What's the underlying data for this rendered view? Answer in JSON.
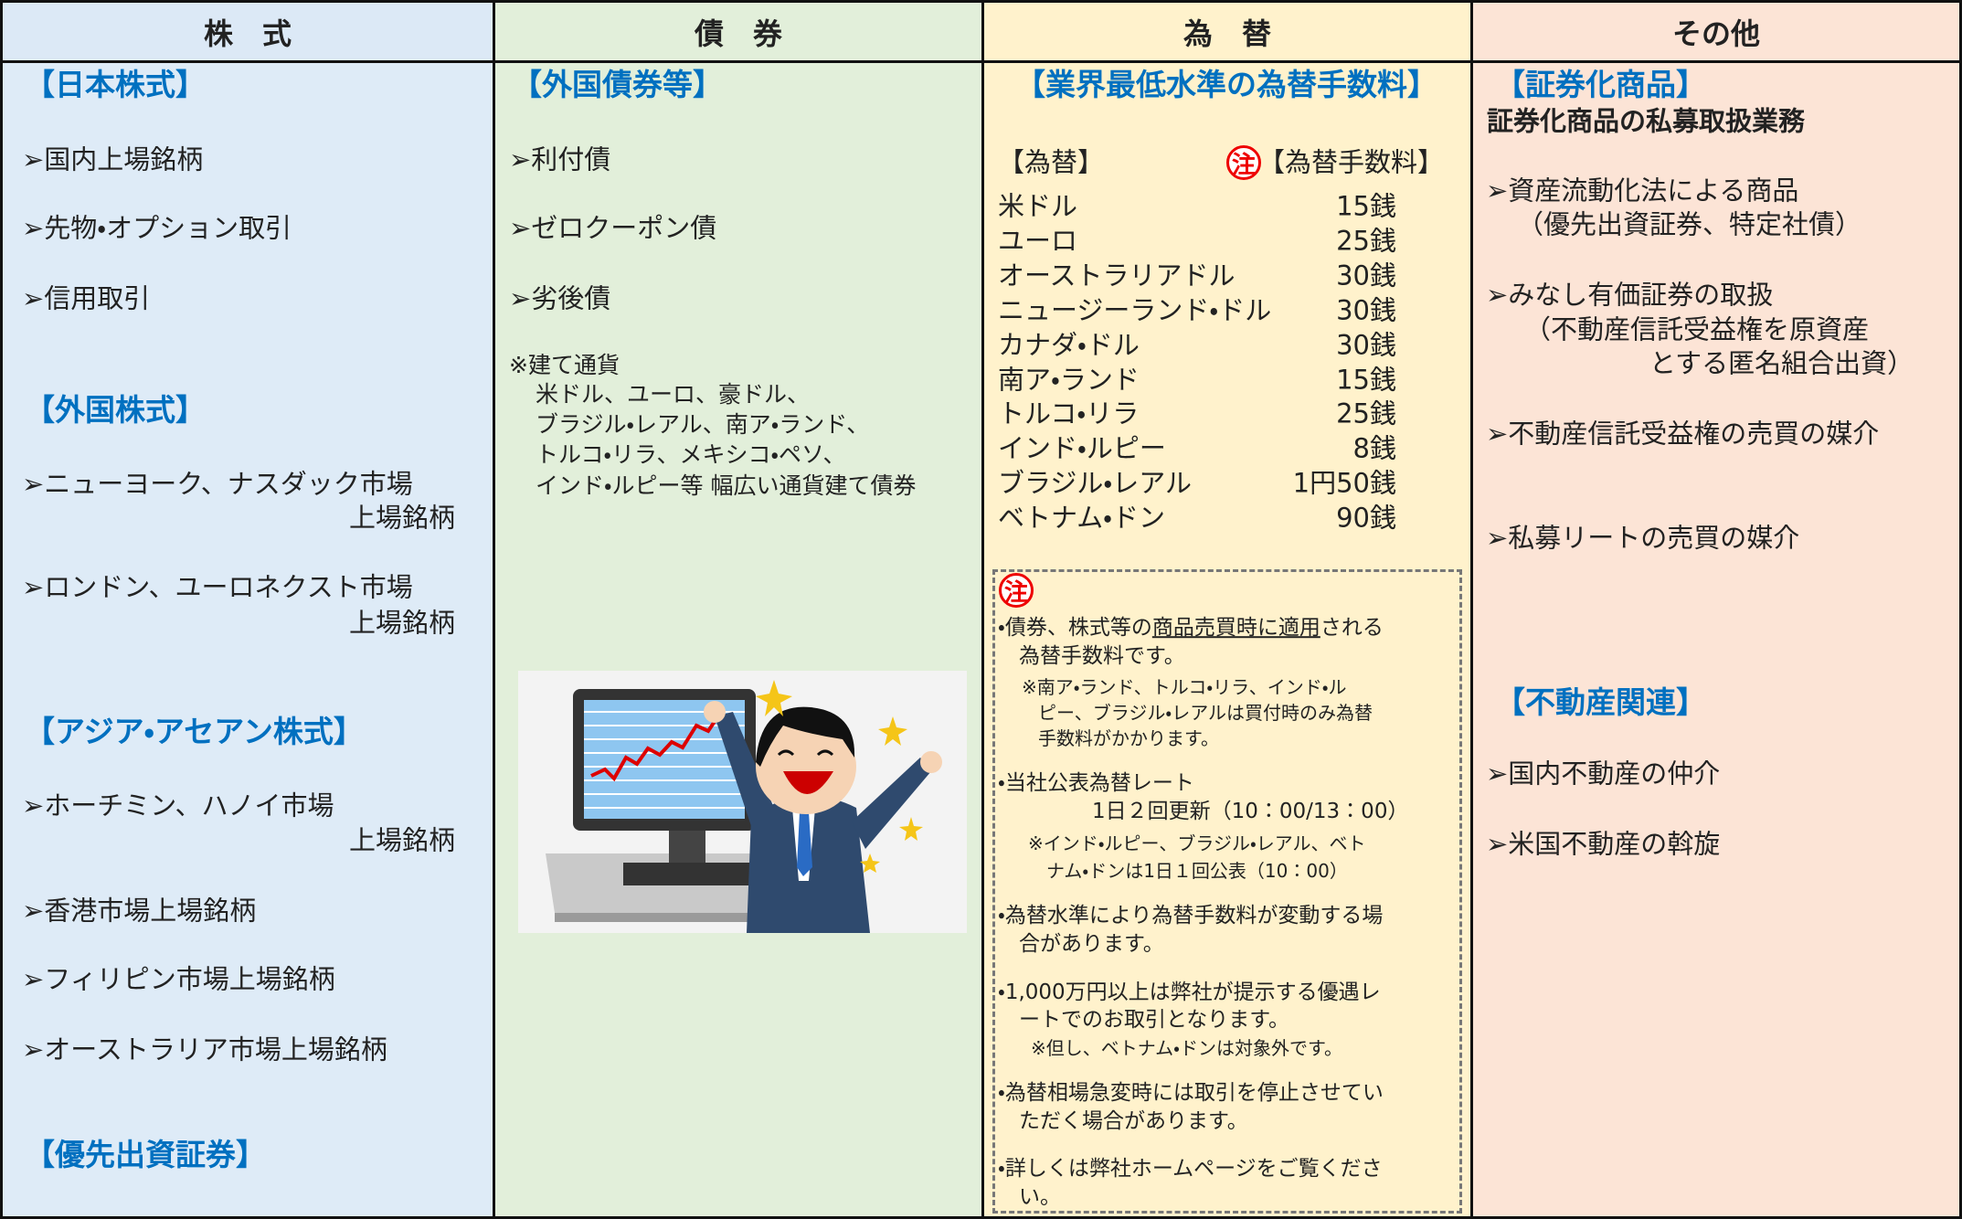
{
  "headers": [
    "株　式",
    "債　券",
    "為　替",
    "その他"
  ],
  "stocks": {
    "japan": {
      "title": "【日本株式】",
      "items": [
        "➢国内上場銘柄",
        "➢先物・オプション取引",
        "➢信用取引"
      ]
    },
    "foreign": {
      "title": "【外国株式】",
      "items": [
        [
          "➢ニューヨーク、ナスダック市場",
          "上場銘柄"
        ],
        [
          "➢ロンドン、ユーロネクスト市場",
          "上場銘柄"
        ]
      ]
    },
    "asia": {
      "title": "【アジア・アセアン株式】",
      "items": [
        [
          "➢ホーチミン、ハノイ市場",
          "上場銘柄"
        ],
        [
          "➢香港市場上場銘柄"
        ],
        [
          "➢フィリピン市場上場銘柄"
        ],
        [
          "➢オーストラリア市場上場銘柄"
        ]
      ]
    },
    "preferred": {
      "title": "【優先出資証券】"
    }
  },
  "bonds": {
    "title": "【外国債券等】",
    "items": [
      "➢利付債",
      "➢ゼロクーポン債",
      "➢劣後債"
    ],
    "note": [
      "※建て通貨",
      "米ドル、ユーロ、豪ドル、",
      "ブラジル・レアル、南ア・ランド、",
      "トルコ・リラ、メキシコ・ペソ、",
      "インド・ルピー等 幅広い通貨建て債券"
    ]
  },
  "fx": {
    "title": "【業界最低水準の為替手数料】",
    "col_currency": "【為替】",
    "note_mark": "注",
    "col_fee": "【為替手数料】",
    "rows": [
      [
        "米ドル",
        "15銭"
      ],
      [
        "ユーロ",
        "25銭"
      ],
      [
        "オーストラリアドル",
        "30銭"
      ],
      [
        "ニュージーランド・ドル",
        "30銭"
      ],
      [
        "カナダ・ドル",
        "30銭"
      ],
      [
        "南ア・ランド",
        "15銭"
      ],
      [
        "トルコ・リラ",
        "25銭"
      ],
      [
        "インド・ルピー",
        "8銭"
      ],
      [
        "ブラジル・レアル",
        "1円50銭"
      ],
      [
        "ベトナム・ドン",
        "90銭"
      ]
    ],
    "notes": {
      "mark": "注",
      "n1": {
        "parts": [
          "・債券、株式等の",
          "商品売買時に適用",
          "される"
        ],
        "line2": "為替手数料です。",
        "sub": [
          "※南ア・ランド、トルコ・リラ、インド・ル",
          "ピー、ブラジル・レアルは買付時のみ為替",
          "手数料がかかります。"
        ]
      },
      "n2": {
        "lines": [
          "・当社公表為替レート",
          "1日２回更新（10：00/13：00）"
        ],
        "sub": [
          "※インド・ルピー、ブラジル・レアル、ベト",
          "ナム・ドンは1日１回公表（10：00）"
        ]
      },
      "n3": {
        "lines": [
          "・為替水準により為替手数料が変動する場",
          "合があります。"
        ]
      },
      "n4": {
        "lines": [
          "・1,000万円以上は弊社が提示する優遇レ",
          "ートでのお取引となります。"
        ],
        "sub": [
          "※但し、ベトナム・ドンは対象外です。"
        ]
      },
      "n5": {
        "lines": [
          "・為替相場急変時には取引を停止させてい",
          "ただく場合があります。"
        ]
      },
      "n6": {
        "lines": [
          "・詳しくは弊社ホームページをご覧くださ",
          "い。"
        ]
      }
    }
  },
  "other": {
    "securitized": {
      "title": "【証券化商品】",
      "subtitle": "証券化商品の私募取扱業務",
      "items": [
        [
          "➢資産流動化法による商品",
          "（優先出資証券、特定社債）"
        ],
        [
          "➢みなし有価証券の取扱",
          "（不動産信託受益権を原資産",
          "とする匿名組合出資）"
        ],
        [
          "➢不動産信託受益権の売買の媒介"
        ],
        [
          "➢私募リートの売買の媒介"
        ]
      ]
    },
    "realestate": {
      "title": "【不動産関連】",
      "items": [
        "➢国内不動産の仲介",
        "➢米国不動産の斡旋"
      ]
    }
  }
}
